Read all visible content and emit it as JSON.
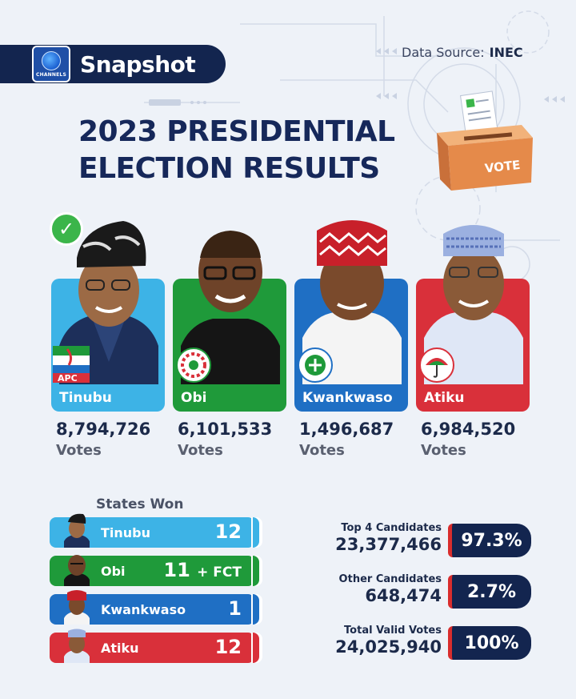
{
  "header": {
    "brand_name": "Snapshot",
    "logo_text": "CHANNELS",
    "source_label": "Data Source:",
    "source_value": "INEC"
  },
  "title": {
    "line1": "2023 PRESIDENTIAL",
    "line2": "ELECTION RESULTS"
  },
  "vote_box_label": "VOTE",
  "candidates": [
    {
      "name": "Tinubu",
      "party_label": "APC",
      "votes": "8,794,726",
      "votes_label": "Votes",
      "color": "#3db3e6",
      "winner": true
    },
    {
      "name": "Obi",
      "party_label": "",
      "votes": "6,101,533",
      "votes_label": "Votes",
      "color": "#1f9a3a"
    },
    {
      "name": "Kwankwaso",
      "party_label": "",
      "votes": "1,496,687",
      "votes_label": "Votes",
      "color": "#1f6fc4"
    },
    {
      "name": "Atiku",
      "party_label": "",
      "votes": "6,984,520",
      "votes_label": "Votes",
      "color": "#d9303a"
    }
  ],
  "states_won": {
    "title": "States Won",
    "rows": [
      {
        "name": "Tinubu",
        "count": "12",
        "extra": "",
        "color": "#3db3e6"
      },
      {
        "name": "Obi",
        "count": "11",
        "extra": "+ FCT",
        "color": "#1f9a3a"
      },
      {
        "name": "Kwankwaso",
        "count": "1",
        "extra": "",
        "color": "#1f6fc4"
      },
      {
        "name": "Atiku",
        "count": "12",
        "extra": "",
        "color": "#d9303a"
      }
    ]
  },
  "stats": [
    {
      "label": "Top 4 Candidates",
      "value": "23,377,466",
      "percent": "97.3%"
    },
    {
      "label": "Other Candidates",
      "value": "648,474",
      "percent": "2.7%"
    },
    {
      "label": "Total Valid Votes",
      "value": "24,025,940",
      "percent": "100%"
    }
  ]
}
